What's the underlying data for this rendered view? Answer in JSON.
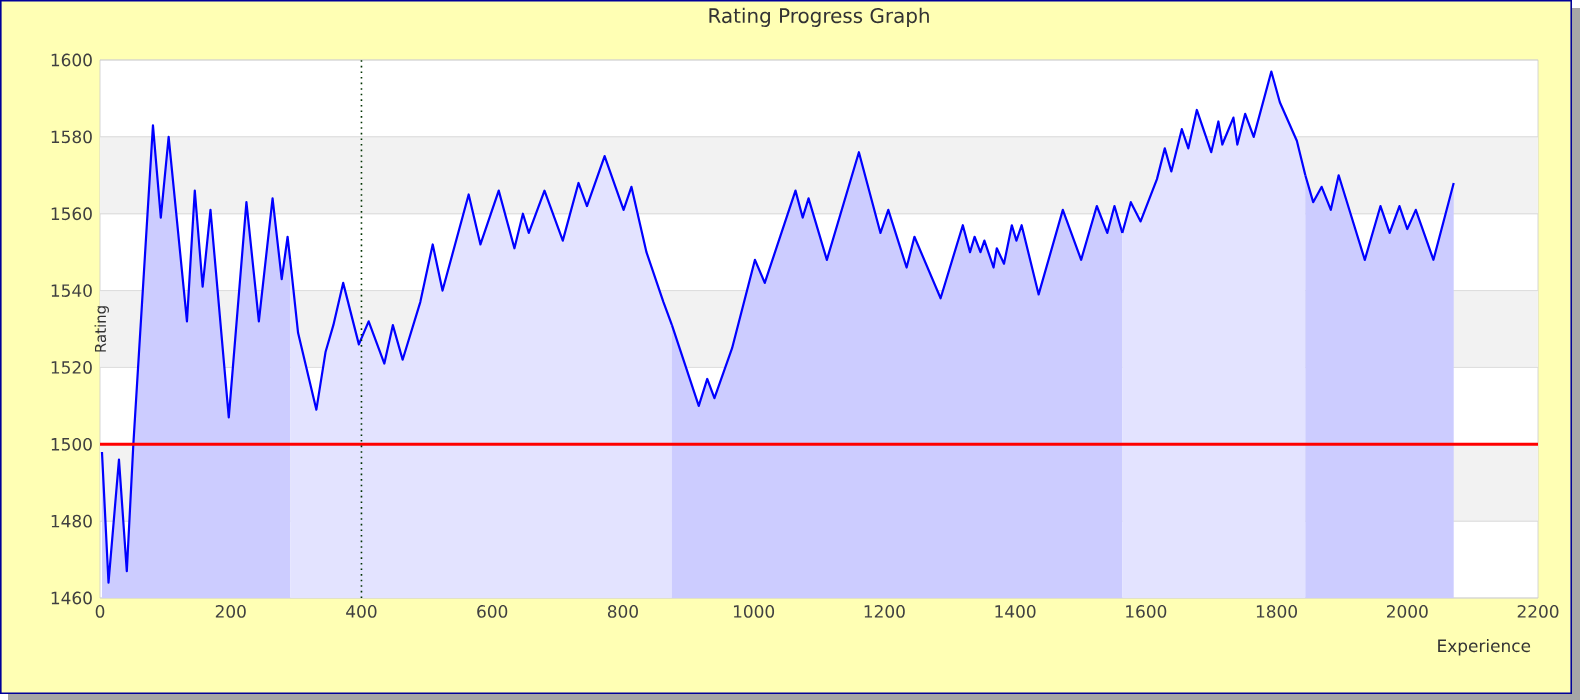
{
  "chart_data": {
    "type": "area",
    "title": "Rating Progress Graph",
    "xlabel": "Experience",
    "ylabel": "Rating",
    "xlim": [
      0,
      2200
    ],
    "xticks": [
      0,
      200,
      400,
      600,
      800,
      1000,
      1200,
      1400,
      1600,
      1800,
      2000,
      2200
    ],
    "ylim": [
      1460,
      1600
    ],
    "yticks": [
      1460,
      1480,
      1500,
      1520,
      1540,
      1560,
      1580,
      1600
    ],
    "grid": "y",
    "line_style": "solid",
    "ref_lines": [
      {
        "axis": "y",
        "value": 1500,
        "color": "#ff0000",
        "line_style": "solid"
      },
      {
        "axis": "x",
        "value": 400,
        "color": "#003300",
        "line_style": "dotted"
      }
    ],
    "series": [
      {
        "color": "#0000ff",
        "x": [
          3,
          13,
          29,
          41,
          51,
          81,
          93,
          105,
          133,
          145,
          157,
          169,
          197,
          224,
          243,
          264,
          278,
          287,
          291
        ],
        "values": [
          1498,
          1464,
          1496,
          1467,
          1500,
          1583,
          1559,
          1580,
          1532,
          1566,
          1541,
          1561,
          1507,
          1563,
          1532,
          1564,
          1543,
          1554,
          1548
        ]
      },
      {
        "color": "#0000ff",
        "x": [
          291,
          303,
          331,
          345,
          357,
          372,
          396,
          411,
          435,
          448,
          463,
          490,
          509,
          524,
          564,
          582,
          610,
          634,
          647,
          656,
          680,
          708,
          732,
          745,
          772,
          801,
          813,
          836,
          862,
          875
        ],
        "values": [
          1548,
          1529,
          1509,
          1524,
          1531,
          1542,
          1526,
          1532,
          1521,
          1531,
          1522,
          1537,
          1552,
          1540,
          1565,
          1552,
          1566,
          1551,
          1560,
          1555,
          1566,
          1553,
          1568,
          1562,
          1575,
          1561,
          1567,
          1550,
          1537,
          1531
        ]
      },
      {
        "color": "#0000ff",
        "x": [
          875,
          916,
          929,
          940,
          967,
          1002,
          1017,
          1064,
          1075,
          1084,
          1112,
          1161,
          1194,
          1206,
          1234,
          1246,
          1286,
          1320,
          1331,
          1338,
          1347,
          1353,
          1367,
          1372,
          1383,
          1395,
          1402,
          1410,
          1436,
          1473,
          1501,
          1525,
          1541,
          1552,
          1564
        ],
        "values": [
          1531,
          1510,
          1517,
          1512,
          1525,
          1548,
          1542,
          1566,
          1559,
          1564,
          1548,
          1576,
          1555,
          1561,
          1546,
          1554,
          1538,
          1557,
          1550,
          1554,
          1550,
          1553,
          1546,
          1551,
          1547,
          1557,
          1553,
          1557,
          1539,
          1561,
          1548,
          1562,
          1555,
          1562,
          1555
        ]
      },
      {
        "color": "#0000ff",
        "x": [
          1564,
          1577,
          1592,
          1617,
          1629,
          1639,
          1655,
          1665,
          1678,
          1700,
          1711,
          1717,
          1734,
          1740,
          1752,
          1765,
          1792,
          1805,
          1831,
          1844
        ],
        "values": [
          1555,
          1563,
          1558,
          1569,
          1577,
          1571,
          1582,
          1577,
          1587,
          1576,
          1584,
          1578,
          1585,
          1578,
          1586,
          1580,
          1597,
          1589,
          1579,
          1570
        ]
      },
      {
        "color": "#0000ff",
        "x": [
          1844,
          1856,
          1869,
          1883,
          1895,
          1935,
          1959,
          1973,
          1988,
          2000,
          2013,
          2040,
          2071
        ],
        "values": [
          1570,
          1563,
          1567,
          1561,
          1570,
          1548,
          1562,
          1555,
          1562,
          1556,
          1561,
          1548,
          1568
        ]
      }
    ]
  }
}
